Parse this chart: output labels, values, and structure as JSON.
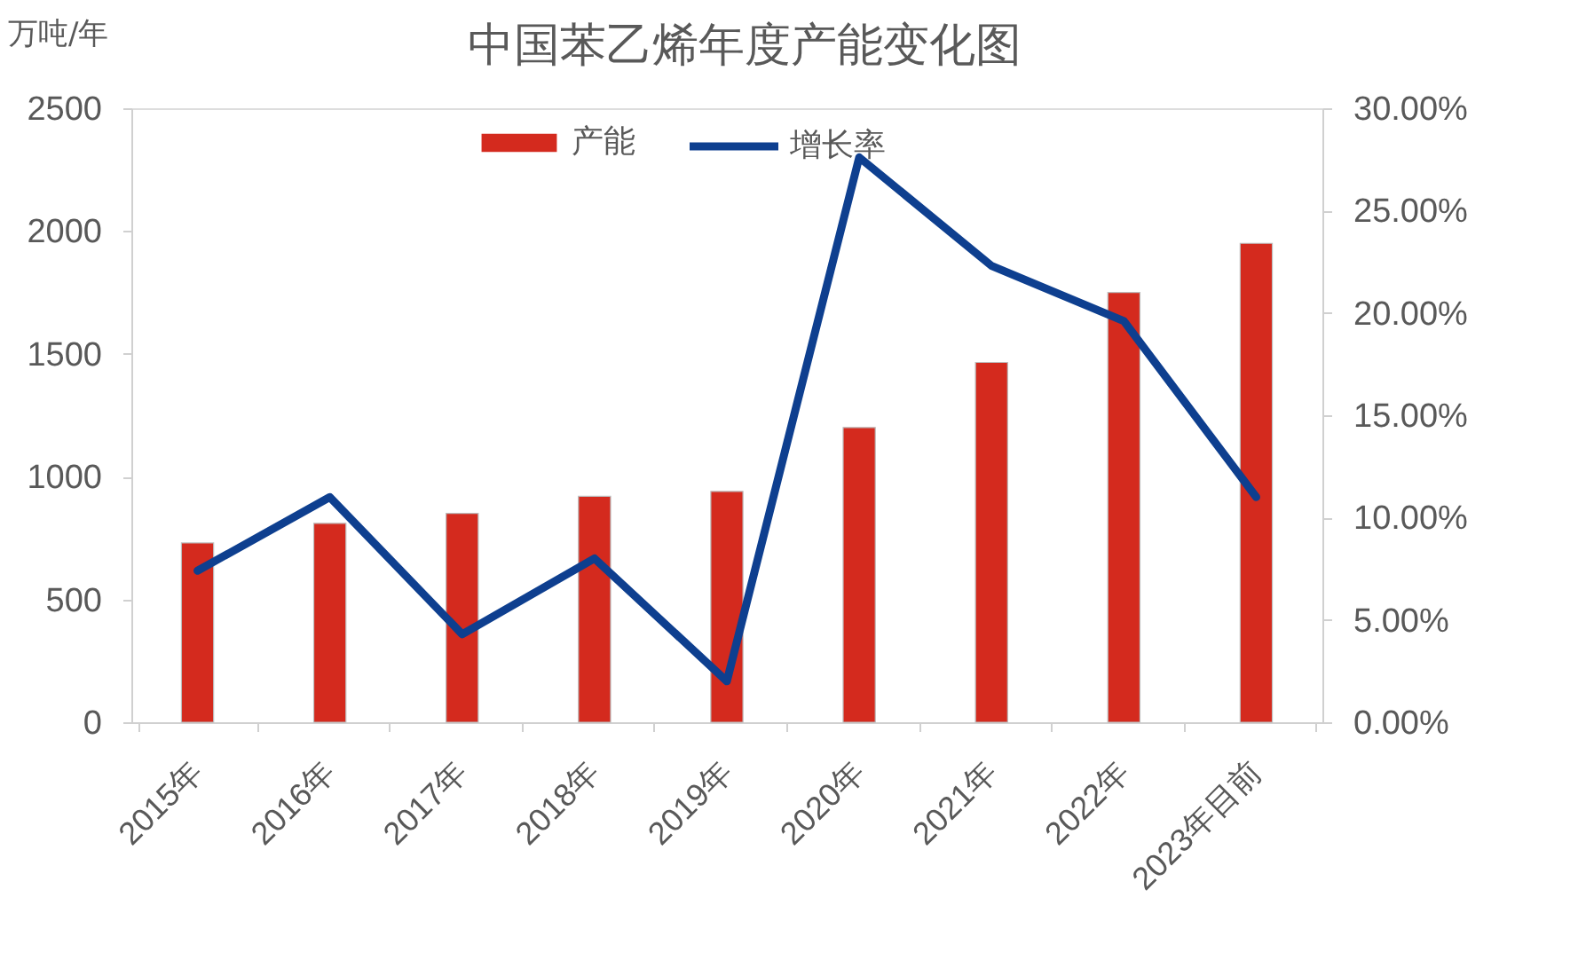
{
  "chart_data": {
    "type": "bar",
    "title": "中国苯乙烯年度产能变化图",
    "ylabel": "万吨/年",
    "categories": [
      "2015年",
      "2016年",
      "2017年",
      "2018年",
      "2019年",
      "2020年",
      "2021年",
      "2022年",
      "2023年目前"
    ],
    "series": [
      {
        "name": "产能",
        "color": "#d42a1e",
        "values": [
          730,
          810,
          850,
          920,
          940,
          1200,
          1465,
          1750,
          1950
        ]
      },
      {
        "name": "增长率",
        "type": "line",
        "axis": "y2",
        "color": "#0e3f8f",
        "values": [
          7.4,
          11.0,
          4.3,
          8.0,
          2.0,
          27.6,
          22.3,
          19.6,
          11.0
        ]
      }
    ],
    "ylim": [
      0,
      2500
    ],
    "yticks": [
      0,
      500,
      1000,
      1500,
      2000,
      2500
    ],
    "y2lim": [
      0,
      30
    ],
    "y2ticks": [
      {
        "value": 0,
        "label": "0.00%"
      },
      {
        "value": 5,
        "label": "5.00%"
      },
      {
        "value": 10,
        "label": "10.00%"
      },
      {
        "value": 15,
        "label": "15.00%"
      },
      {
        "value": 20,
        "label": "20.00%"
      },
      {
        "value": 25,
        "label": "25.00%"
      },
      {
        "value": 30,
        "label": "30.00%"
      }
    ],
    "grid": false,
    "legend": "top",
    "marker": "none",
    "line_style": "solid"
  }
}
